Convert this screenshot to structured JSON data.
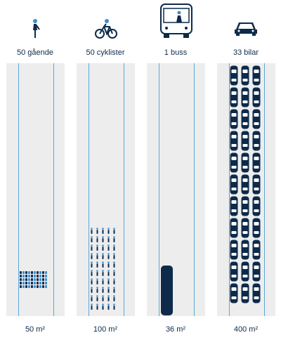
{
  "colors": {
    "lane": "#ededed",
    "line": "#5aa8d8",
    "dark": "#0d2a4a",
    "icon": "#3b8ed0"
  },
  "modes": [
    {
      "key": "pedestrians",
      "label": "50 gående",
      "area": "50 m²",
      "count": 50,
      "icon": "pedestrian-icon"
    },
    {
      "key": "cyclists",
      "label": "50 cyklister",
      "area": "100 m²",
      "count": 50,
      "icon": "bicycle-icon"
    },
    {
      "key": "bus",
      "label": "1 buss",
      "area": "36 m²",
      "count": 1,
      "icon": "bus-icon"
    },
    {
      "key": "cars",
      "label": "33 bilar",
      "area": "400 m²",
      "count": 33,
      "icon": "car-icon"
    }
  ]
}
